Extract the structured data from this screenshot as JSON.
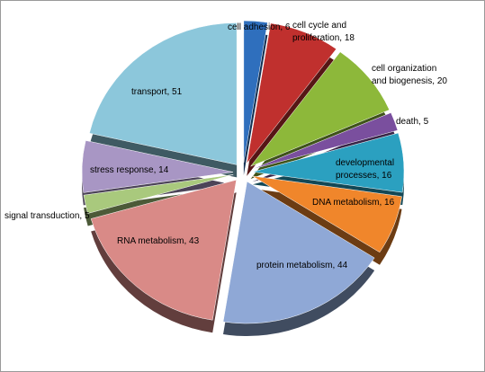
{
  "chart_data": {
    "type": "pie",
    "categories": [
      "cell adhesion",
      "cell cycle and proliferation",
      "cell organization and biogenesis",
      "death",
      "developmental processes",
      "DNA metabolism",
      "protein metabolism",
      "RNA metabolism",
      "signal transduction",
      "stress response",
      "transport"
    ],
    "values": [
      6,
      18,
      20,
      5,
      16,
      16,
      44,
      43,
      5,
      14,
      51
    ],
    "value_labels": [
      ", 6",
      ", 18",
      ", 20",
      ", 5",
      ", 16",
      ", 16",
      ", 44",
      ", 43",
      ", 5",
      ", 14",
      ", 51"
    ],
    "colors": [
      "#2f6fbd",
      "#c0302e",
      "#8db83a",
      "#7a4f9e",
      "#2ba0c0",
      "#f0862b",
      "#8fa8d6",
      "#d98a87",
      "#a9c97d",
      "#a896c4",
      "#8cc7db"
    ]
  }
}
